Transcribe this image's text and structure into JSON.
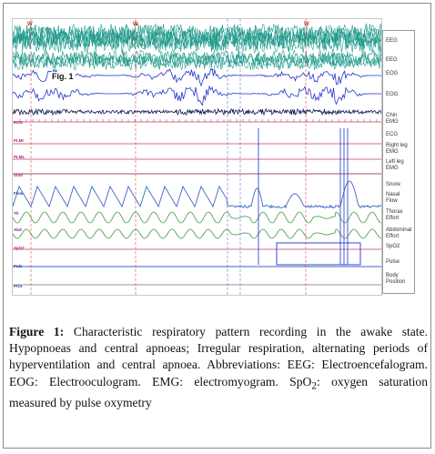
{
  "figure": {
    "tag": "Fig. 1",
    "markers": [
      "W",
      "W",
      "W"
    ],
    "left_labels": [
      "ECG",
      "PLMr",
      "PLML",
      "Snor",
      "Flow",
      "Th",
      "Abd",
      "SpO2",
      "Puls",
      "POS"
    ],
    "channel_labels": [
      "EEG",
      "EEG",
      "EOG",
      "EOG",
      "Chin\nEMG",
      "ECG",
      "Right leg\nEMG",
      "Left leg\nEMG",
      "Snore",
      "Nasal\nFlow",
      "Thorax\nEffort",
      "Abdominal\nEffort",
      "SpO2",
      "Pulse",
      "Body\nPosition"
    ],
    "colors": {
      "eeg": "#1f9a8a",
      "eog": "#2233cc",
      "emg": "#111a55",
      "ecg": "#c43a6a",
      "flow": "#3a66c8",
      "effort": "#3a9a3a",
      "marker": "#c8282a"
    }
  },
  "caption": {
    "lead": "Figure 1:",
    "text": " Characteristic respiratory pattern recording in the awake state. Hypopnoeas and central apnoeas; Irregular respiration, alternating periods of hyperventilation and central apnoea. Abbreviations: EEG: Electroencefalogram. EOG: Electrooculogram. EMG: electromyogram. SpO",
    "sub": "2",
    "tail": ": oxygen saturation measured by pulse oxymetry"
  }
}
